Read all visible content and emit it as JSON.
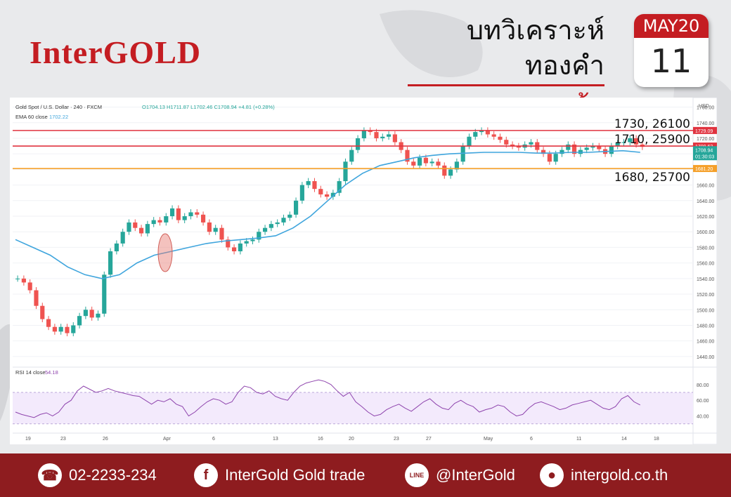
{
  "brand": {
    "logo": "InterGOLD"
  },
  "headline": {
    "title": "บทวิเคราะห์ทองคำ",
    "session": "ภาคเช้า"
  },
  "calendar": {
    "month": "MAY20",
    "day": "11"
  },
  "chart_data": {
    "type": "candlestick",
    "instrument": "Gold Spot / U.S. Dollar · 240 · FXCM",
    "ohlc_header": "O1704.13  H1711.87  L1702.46  C1708.94  +4.81 (+0.28%)",
    "ema_label": "EMA 60 close",
    "ema_value": "1702.22",
    "currency": "USD",
    "ylim": [
      1430,
      1765
    ],
    "y_ticks": [
      1440,
      1460,
      1480,
      1500,
      1520,
      1540,
      1560,
      1580,
      1600,
      1620,
      1640,
      1660,
      1680,
      1700,
      1720,
      1740,
      1760
    ],
    "x_ticks": [
      "19",
      "23",
      "26",
      "Apr",
      "6",
      "13",
      "16",
      "20",
      "23",
      "27",
      "May",
      "6",
      "11",
      "14",
      "18"
    ],
    "candles": [
      1540,
      1535,
      1525,
      1505,
      1488,
      1478,
      1472,
      1478,
      1470,
      1480,
      1492,
      1500,
      1490,
      1495,
      1545,
      1575,
      1585,
      1600,
      1612,
      1605,
      1598,
      1610,
      1615,
      1612,
      1620,
      1630,
      1615,
      1620,
      1625,
      1622,
      1612,
      1600,
      1605,
      1590,
      1580,
      1575,
      1585,
      1588,
      1590,
      1600,
      1605,
      1610,
      1612,
      1618,
      1622,
      1640,
      1660,
      1665,
      1655,
      1648,
      1645,
      1650,
      1665,
      1690,
      1705,
      1720,
      1730,
      1728,
      1720,
      1722,
      1725,
      1715,
      1705,
      1690,
      1685,
      1695,
      1688,
      1690,
      1685,
      1672,
      1680,
      1690,
      1710,
      1722,
      1728,
      1730,
      1725,
      1722,
      1718,
      1712,
      1710,
      1708,
      1712,
      1715,
      1705,
      1700,
      1690,
      1700,
      1705,
      1712,
      1700,
      1705,
      1708,
      1710,
      1706,
      1700,
      1710,
      1714,
      1715,
      1720,
      1712,
      1709
    ],
    "ema": [
      1590,
      1580,
      1570,
      1555,
      1545,
      1540,
      1545,
      1560,
      1570,
      1575,
      1580,
      1585,
      1588,
      1590,
      1592,
      1595,
      1605,
      1620,
      1640,
      1660,
      1675,
      1685,
      1690,
      1695,
      1698,
      1700,
      1701,
      1702,
      1702,
      1702,
      1701,
      1701,
      1702,
      1702,
      1703,
      1704,
      1702
    ],
    "levels": [
      {
        "label": "1730, 26100",
        "price": 1730,
        "tag": "1729.09",
        "color": "#e0333f"
      },
      {
        "label": "1710, 25900",
        "price": 1710,
        "tag": "1709.62",
        "color": "#e0333f"
      },
      {
        "label": "1680, 25700",
        "price": 1681.2,
        "tag": "1681.20",
        "color": "#f5a02a"
      }
    ],
    "price_tags": [
      "1708.94",
      "01:30:03"
    ],
    "rsi": {
      "label": "RSI 14 close",
      "value": "54.18",
      "ylim": [
        20,
        95
      ],
      "ticks": [
        "80.00",
        "60.00",
        "40.00"
      ],
      "values": [
        45,
        42,
        40,
        38,
        42,
        44,
        40,
        45,
        55,
        60,
        72,
        78,
        74,
        70,
        72,
        75,
        72,
        70,
        68,
        66,
        65,
        60,
        55,
        60,
        58,
        62,
        55,
        52,
        40,
        45,
        52,
        58,
        62,
        60,
        55,
        58,
        70,
        78,
        76,
        70,
        68,
        72,
        65,
        62,
        60,
        70,
        78,
        82,
        84,
        86,
        84,
        80,
        72,
        65,
        70,
        58,
        52,
        45,
        40,
        42,
        48,
        52,
        55,
        50,
        46,
        52,
        58,
        62,
        55,
        50,
        48,
        56,
        60,
        55,
        52,
        45,
        48,
        50,
        54,
        52,
        45,
        40,
        42,
        50,
        56,
        58,
        55,
        52,
        48,
        50,
        54,
        56,
        58,
        60,
        55,
        50,
        48,
        52,
        62,
        66,
        58,
        54
      ]
    }
  },
  "footer": {
    "phone": "02-2233-234",
    "facebook": "InterGold Gold trade",
    "line": "@InterGold",
    "web": "intergold.co.th",
    "line_icon_text": "LINE"
  }
}
